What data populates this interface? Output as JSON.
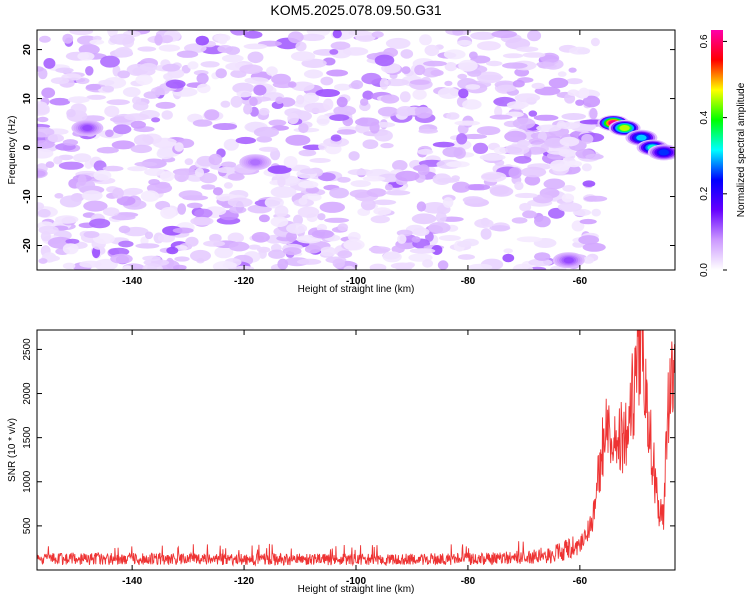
{
  "title": "KOM5.2025.078.09.50.G31",
  "chart_data": [
    {
      "type": "heatmap",
      "xlabel": "Height of straight line (km)",
      "ylabel": "Frequency (Hz)",
      "xlim": [
        -157,
        -43
      ],
      "ylim": [
        -25,
        24
      ],
      "xticks": [
        -140,
        -120,
        -100,
        -80,
        -60
      ],
      "yticks": [
        -20,
        -10,
        0,
        10,
        20
      ],
      "colorbar": {
        "label": "Normalized spectral amplitude",
        "range": [
          0,
          0.63
        ],
        "ticks": [
          "0.0",
          "0.2",
          "0.4",
          "0.6"
        ],
        "tick_values": [
          0.0,
          0.2,
          0.4,
          0.6
        ],
        "colors": [
          "#ffffff",
          "#cc99ff",
          "#6600ff",
          "#0000ff",
          "#00ffff",
          "#00ff00",
          "#ffff00",
          "#ff0000",
          "#ff00aa"
        ]
      },
      "background_level": 0.04,
      "noise_region": [
        -157,
        -57
      ],
      "hotspots": [
        {
          "x": -54,
          "y": 5,
          "value": 0.62
        },
        {
          "x": -52,
          "y": 4,
          "value": 0.45
        },
        {
          "x": -49,
          "y": 2,
          "value": 0.3
        },
        {
          "x": -47,
          "y": 0,
          "value": 0.33
        },
        {
          "x": -45,
          "y": -1,
          "value": 0.25
        },
        {
          "x": -62,
          "y": -23,
          "value": 0.12
        },
        {
          "x": -148,
          "y": 4,
          "value": 0.12
        },
        {
          "x": -118,
          "y": -3,
          "value": 0.1
        }
      ]
    },
    {
      "type": "line",
      "xlabel": "Height of straight line (km)",
      "ylabel": "SNR (10 * v/v)",
      "xlim": [
        -157,
        -43
      ],
      "ylim": [
        0,
        2720
      ],
      "xticks": [
        -140,
        -120,
        -100,
        -80,
        -60
      ],
      "yticks": [
        500,
        1000,
        1500,
        2000,
        2500
      ],
      "color": "#ee3333",
      "baseline": {
        "x_range": [
          -157,
          -65
        ],
        "y_range": [
          40,
          300
        ]
      },
      "keypoints": [
        {
          "x": -157,
          "y": 130
        },
        {
          "x": -120,
          "y": 120
        },
        {
          "x": -90,
          "y": 120
        },
        {
          "x": -75,
          "y": 130
        },
        {
          "x": -65,
          "y": 170
        },
        {
          "x": -60,
          "y": 280
        },
        {
          "x": -58,
          "y": 500
        },
        {
          "x": -57,
          "y": 900
        },
        {
          "x": -56,
          "y": 1350
        },
        {
          "x": -55,
          "y": 1650
        },
        {
          "x": -54,
          "y": 1400
        },
        {
          "x": -53,
          "y": 1600
        },
        {
          "x": -52,
          "y": 1400
        },
        {
          "x": -51,
          "y": 1800
        },
        {
          "x": -50,
          "y": 2200
        },
        {
          "x": -49,
          "y": 2690
        },
        {
          "x": -48,
          "y": 1700
        },
        {
          "x": -47,
          "y": 1300
        },
        {
          "x": -46,
          "y": 700
        },
        {
          "x": -45,
          "y": 600
        },
        {
          "x": -44.5,
          "y": 1700
        },
        {
          "x": -43.5,
          "y": 2400
        },
        {
          "x": -43,
          "y": 2300
        }
      ]
    }
  ]
}
